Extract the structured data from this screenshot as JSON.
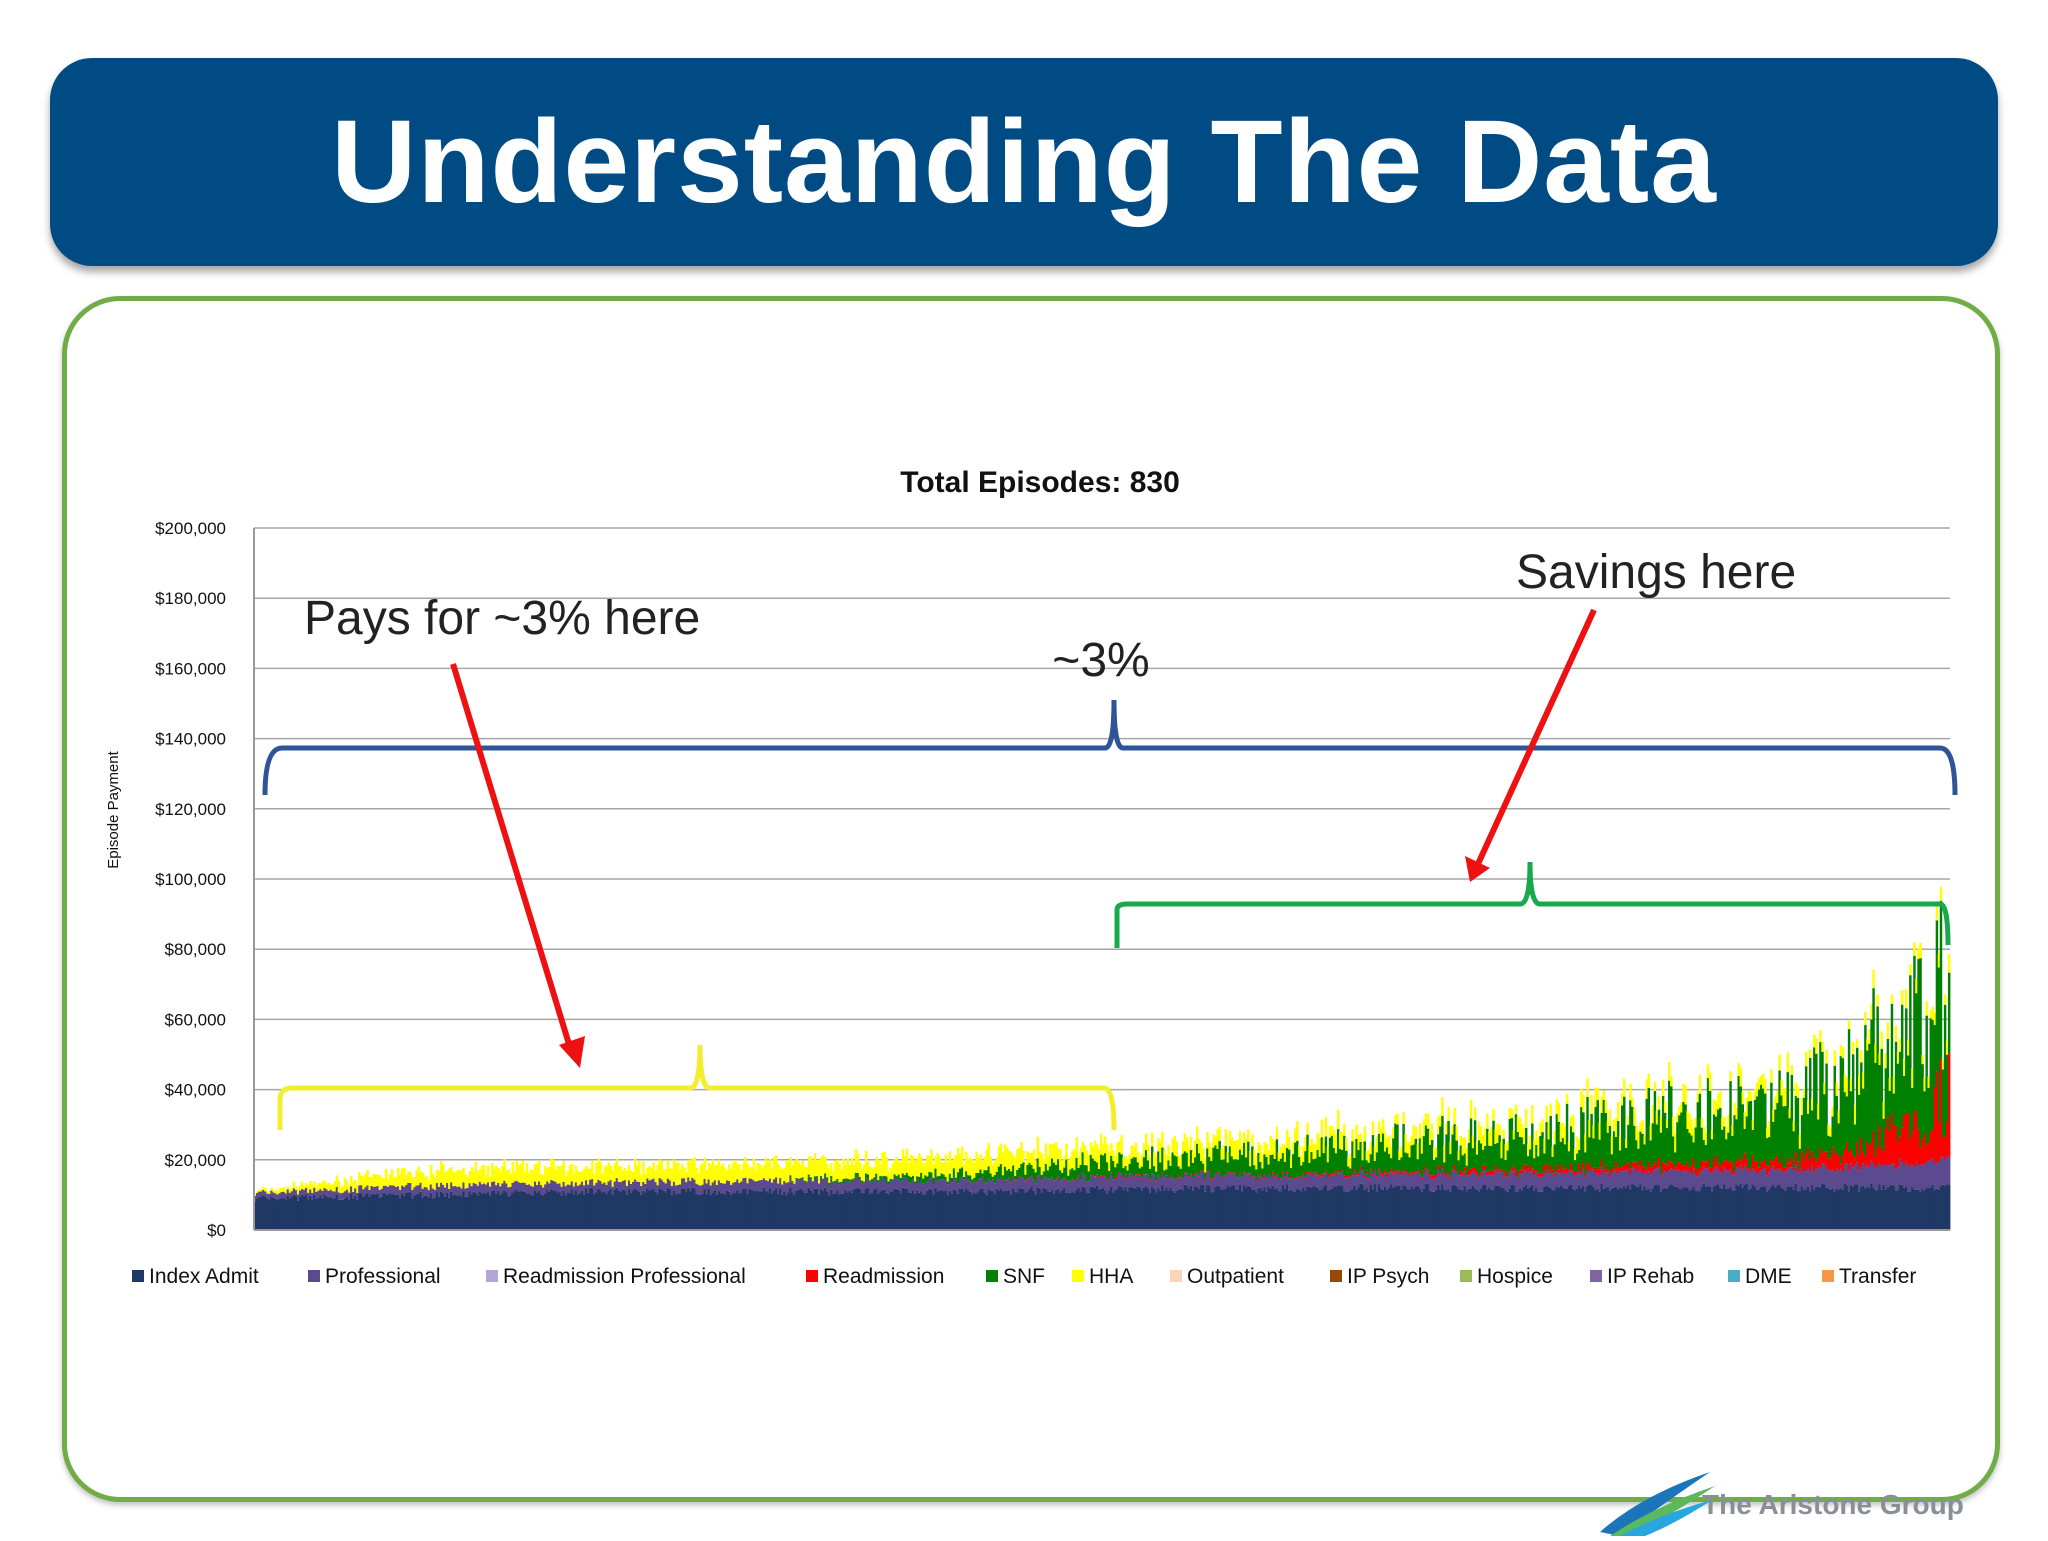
{
  "slide": {
    "title": "Understanding The Data"
  },
  "annotations": {
    "pays_for": "Pays for ~3% here",
    "savings": "Savings here",
    "bracket_label": "~3%"
  },
  "logo": {
    "text": "The Aristone Group"
  },
  "colors": {
    "title_bar": "#004b84",
    "panel_border": "#70ad47",
    "blue_bracket": "#2e5597",
    "yellow_bracket": "#f2ee2b",
    "green_bracket": "#19a84e",
    "arrow": "#ee1111"
  },
  "chart_data": {
    "type": "bar",
    "title": "Total Episodes: 830",
    "xlabel": "",
    "ylabel": "Episode Payment",
    "ylim": [
      0,
      200000
    ],
    "yticks": [
      "$0",
      "$20,000",
      "$40,000",
      "$60,000",
      "$80,000",
      "$100,000",
      "$120,000",
      "$140,000",
      "$160,000",
      "$180,000",
      "$200,000"
    ],
    "grid": true,
    "stacked": true,
    "sorted_ascending": true,
    "episode_count": 830,
    "legend_position": "bottom",
    "legend": [
      {
        "name": "Index Admit",
        "color": "#1f3864"
      },
      {
        "name": "Professional",
        "color": "#5c4a8e"
      },
      {
        "name": "Readmission  Professional",
        "color": "#b4a7d6"
      },
      {
        "name": "Readmission",
        "color": "#ff0000"
      },
      {
        "name": "SNF",
        "color": "#008000"
      },
      {
        "name": "HHA",
        "color": "#ffff00"
      },
      {
        "name": "Outpatient",
        "color": "#fbd5b5"
      },
      {
        "name": "IP Psych",
        "color": "#974806"
      },
      {
        "name": "Hospice",
        "color": "#9bbb59"
      },
      {
        "name": "IP Rehab",
        "color": "#8064a2"
      },
      {
        "name": "DME",
        "color": "#4bacc6"
      },
      {
        "name": "Transfer",
        "color": "#f79646"
      }
    ],
    "episode_total_profile": {
      "episode_percentile": [
        0,
        0.1,
        0.2,
        0.3,
        0.4,
        0.5,
        0.6,
        0.7,
        0.8,
        0.9,
        0.95,
        1.0
      ],
      "total_payment": [
        11000,
        17000,
        18000,
        19000,
        21000,
        24000,
        26000,
        30000,
        35000,
        41000,
        52000,
        92000
      ]
    },
    "episode_component_profile": {
      "index_admit": [
        9000,
        10000,
        11000,
        11000,
        11000,
        11500,
        12000,
        12000,
        12000,
        12000,
        12000,
        12000
      ],
      "professional": [
        1500,
        2500,
        2500,
        3000,
        3000,
        3500,
        3500,
        4000,
        4500,
        5000,
        6000,
        8000
      ],
      "snf": [
        0,
        0,
        0,
        0,
        1500,
        4000,
        6000,
        8500,
        12000,
        16000,
        22000,
        40000
      ],
      "hha": [
        500,
        4500,
        4500,
        4800,
        5000,
        4500,
        4000,
        4000,
        4000,
        4000,
        4000,
        4000
      ],
      "readmission": [
        0,
        0,
        0,
        0,
        0,
        200,
        300,
        800,
        1500,
        2500,
        5000,
        18000
      ]
    }
  }
}
